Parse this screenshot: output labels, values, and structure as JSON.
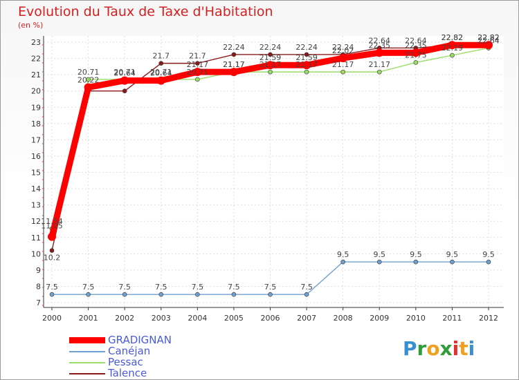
{
  "title": "Evolution du Taux de Taxe d'Habitation",
  "unit": "(en %)",
  "logo": {
    "letters": [
      "P",
      "r",
      "o",
      "x",
      "i",
      "t",
      "i"
    ],
    "colors": [
      "#3a8fd0",
      "#2f9e3a",
      "#f0a020",
      "#2f9e3a",
      "#e03030",
      "#f0a020",
      "#3a8fd0"
    ]
  },
  "chart_data": {
    "type": "line",
    "x": [
      "2000",
      "2001",
      "2002",
      "2003",
      "2004",
      "2005",
      "2006",
      "2007",
      "2008",
      "2009",
      "2010",
      "2011",
      "2012"
    ],
    "y_ticks": [
      "7",
      "8",
      "9",
      "10",
      "11",
      "12",
      "13",
      "14",
      "15",
      "16",
      "17",
      "18",
      "19",
      "20",
      "21",
      "22",
      "23"
    ],
    "ylim": [
      7,
      23
    ],
    "series": [
      {
        "name": "GRADIGNAN",
        "color": "#ff0000",
        "values": [
          11.05,
          20.22,
          20.64,
          20.64,
          21.17,
          21.17,
          21.59,
          21.59,
          22.02,
          22.35,
          22.35,
          22.82,
          22.82
        ],
        "labels": [
          "11.05",
          "20.22",
          "20.64",
          "20.64",
          "21.17",
          "21.17",
          "21.59",
          "21.59",
          "22.02",
          "22.35",
          "22.35",
          "22.82",
          "22.82"
        ]
      },
      {
        "name": "Canéjan",
        "color": "#6fa0cf",
        "values": [
          7.5,
          7.5,
          7.5,
          7.5,
          7.5,
          7.5,
          7.5,
          7.5,
          9.5,
          9.5,
          9.5,
          9.5,
          9.5
        ],
        "labels": [
          "7.5",
          "7.5",
          "7.5",
          "7.5",
          "7.5",
          "7.5",
          "7.5",
          "7.5",
          "9.5",
          "9.5",
          "9.5",
          "9.5",
          "9.5"
        ]
      },
      {
        "name": "Pessac",
        "color": "#99dd66",
        "values": [
          11.54,
          20.71,
          20.71,
          20.71,
          20.71,
          21.17,
          21.17,
          21.17,
          21.17,
          21.17,
          21.75,
          22.19,
          22.64
        ],
        "labels": [
          "11.54",
          "20.71",
          "20.71",
          "20.71",
          "20.71",
          "21.17",
          "21.17",
          "21.17",
          "21.17",
          "21.17",
          "21.75",
          "22.19",
          "22.64"
        ]
      },
      {
        "name": "Talence",
        "color": "#8a1a1a",
        "values": [
          10.2,
          20.0,
          20.0,
          21.7,
          21.7,
          22.24,
          22.24,
          22.24,
          22.24,
          22.64,
          22.64,
          22.82,
          22.82
        ],
        "labels": [
          "10.2",
          "",
          "",
          "21.7",
          "21.7",
          "22.24",
          "22.24",
          "22.24",
          "22.24",
          "22.64",
          "22.64",
          "22.82",
          "22.82"
        ]
      }
    ]
  }
}
